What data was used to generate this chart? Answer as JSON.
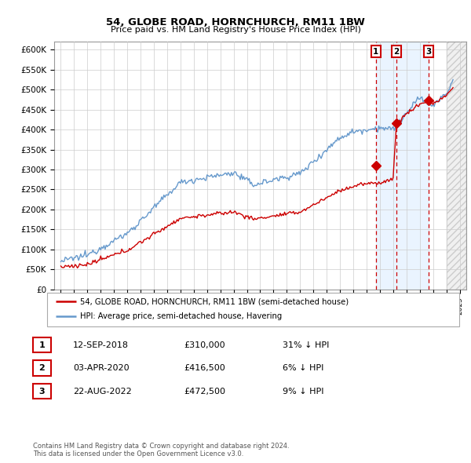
{
  "title_line1": "54, GLOBE ROAD, HORNCHURCH, RM11 1BW",
  "title_line2": "Price paid vs. HM Land Registry's House Price Index (HPI)",
  "ylim": [
    0,
    620000
  ],
  "yticks": [
    0,
    50000,
    100000,
    150000,
    200000,
    250000,
    300000,
    350000,
    400000,
    450000,
    500000,
    550000,
    600000
  ],
  "ytick_labels": [
    "£0",
    "£50K",
    "£100K",
    "£150K",
    "£200K",
    "£250K",
    "£300K",
    "£350K",
    "£400K",
    "£450K",
    "£500K",
    "£550K",
    "£600K"
  ],
  "red_line_color": "#cc0000",
  "blue_line_color": "#6699cc",
  "highlight_color": "#ddeeff",
  "grid_color": "#cccccc",
  "vline_color": "#cc0000",
  "xlim_start": 1994.5,
  "xlim_end": 2025.5,
  "hatch_start": 2024.0,
  "transactions": [
    {
      "date_decimal": 2018.7,
      "price": 310000,
      "label": "1"
    },
    {
      "date_decimal": 2020.25,
      "price": 416500,
      "label": "2"
    },
    {
      "date_decimal": 2022.65,
      "price": 472500,
      "label": "3"
    }
  ],
  "legend_items": [
    {
      "label": "54, GLOBE ROAD, HORNCHURCH, RM11 1BW (semi-detached house)",
      "color": "#cc0000"
    },
    {
      "label": "HPI: Average price, semi-detached house, Havering",
      "color": "#6699cc"
    }
  ],
  "table_rows": [
    {
      "num": "1",
      "date": "12-SEP-2018",
      "price": "£310,000",
      "change": "31% ↓ HPI"
    },
    {
      "num": "2",
      "date": "03-APR-2020",
      "price": "£416,500",
      "change": "6% ↓ HPI"
    },
    {
      "num": "3",
      "date": "22-AUG-2022",
      "price": "£472,500",
      "change": "9% ↓ HPI"
    }
  ],
  "footnote": "Contains HM Land Registry data © Crown copyright and database right 2024.\nThis data is licensed under the Open Government Licence v3.0."
}
